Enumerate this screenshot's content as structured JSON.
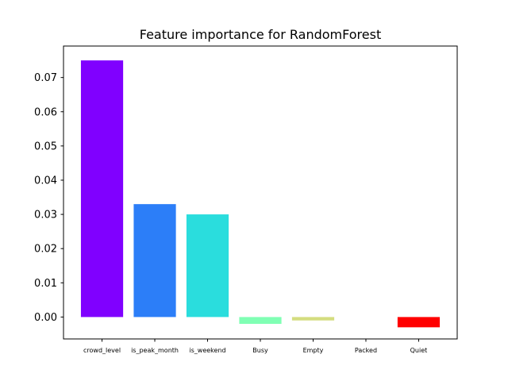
{
  "chart_data": {
    "type": "bar",
    "title": "Feature importance for RandomForest",
    "xlabel": "",
    "ylabel": "",
    "categories": [
      "crowd_level",
      "is_peak_month",
      "is_weekend",
      "Busy",
      "Empty",
      "Packed",
      "Quiet"
    ],
    "values": [
      0.075,
      0.033,
      0.03,
      -0.002,
      -0.001,
      0.0,
      -0.003
    ],
    "colors": [
      "#8000ff",
      "#2c7ef8",
      "#2adddd",
      "#80ffb4",
      "#d4dd80",
      "#ff7e41",
      "#ff0000"
    ],
    "ylim": [
      -0.0064,
      0.0792
    ],
    "yticks": [
      0.0,
      0.01,
      0.02,
      0.03,
      0.04,
      0.05,
      0.06,
      0.07
    ],
    "ytick_labels": [
      "0.00",
      "0.01",
      "0.02",
      "0.03",
      "0.04",
      "0.05",
      "0.06",
      "0.07"
    ],
    "grid": false,
    "legend": "none"
  }
}
